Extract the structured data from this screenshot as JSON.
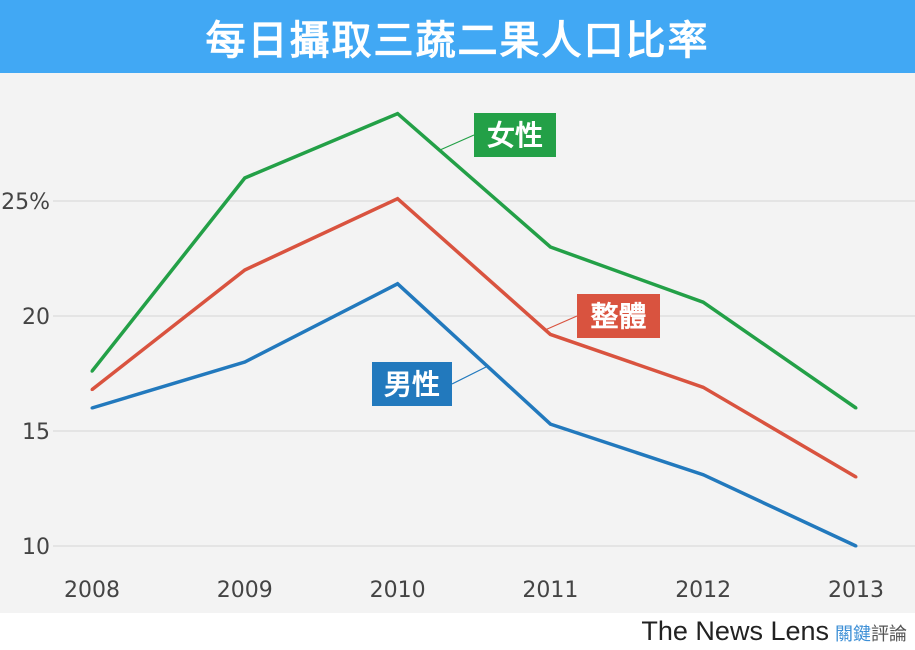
{
  "chart_data": {
    "type": "line",
    "title": "每日攝取三蔬二果人口比率",
    "x": [
      "2008",
      "2009",
      "2010",
      "2011",
      "2012",
      "2013"
    ],
    "ylim": [
      10,
      29
    ],
    "yticks": [
      10,
      15,
      20,
      25
    ],
    "ytick_labels": [
      "10",
      "15",
      "20",
      "25%"
    ],
    "grid": true,
    "series": [
      {
        "name": "女性",
        "color": "#23a047",
        "values": [
          17.6,
          26.0,
          28.8,
          23.0,
          20.6,
          16.0
        ]
      },
      {
        "name": "整體",
        "color": "#d9533f",
        "values": [
          16.8,
          22.0,
          25.1,
          19.2,
          16.9,
          13.0
        ]
      },
      {
        "name": "男性",
        "color": "#2279bd",
        "values": [
          16.0,
          18.0,
          21.4,
          15.3,
          13.1,
          10.0
        ]
      }
    ]
  },
  "footer": {
    "brand": "The News Lens",
    "brand_cn_a": "關鍵",
    "brand_cn_b": "評論"
  }
}
